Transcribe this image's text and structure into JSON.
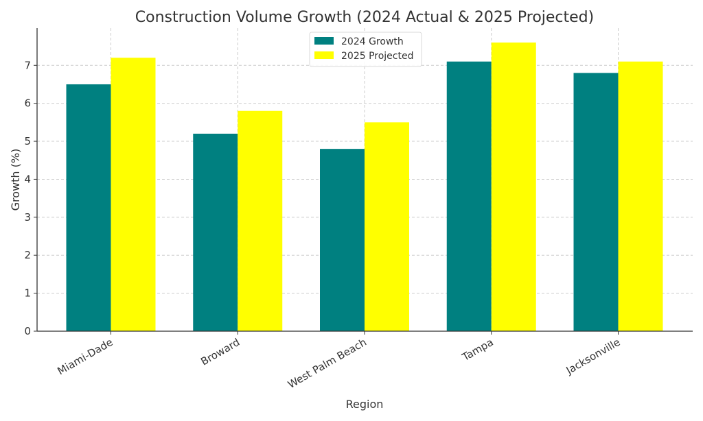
{
  "chart_data": {
    "type": "bar",
    "title": "Construction Volume Growth (2024 Actual & 2025 Projected)",
    "xlabel": "Region",
    "ylabel": "Growth (%)",
    "categories": [
      "Miami-Dade",
      "Broward",
      "West Palm Beach",
      "Tampa",
      "Jacksonville"
    ],
    "series": [
      {
        "name": "2024 Growth",
        "color": "#008080",
        "values": [
          6.5,
          5.2,
          4.8,
          7.1,
          6.8
        ]
      },
      {
        "name": "2025 Projected",
        "color": "#ffff00",
        "values": [
          7.2,
          5.8,
          5.5,
          7.6,
          7.1
        ]
      }
    ],
    "ylim": [
      0,
      7.98
    ],
    "yticks": [
      0,
      1,
      2,
      3,
      4,
      5,
      6,
      7
    ],
    "grid": true,
    "legend_position": "top-center"
  }
}
